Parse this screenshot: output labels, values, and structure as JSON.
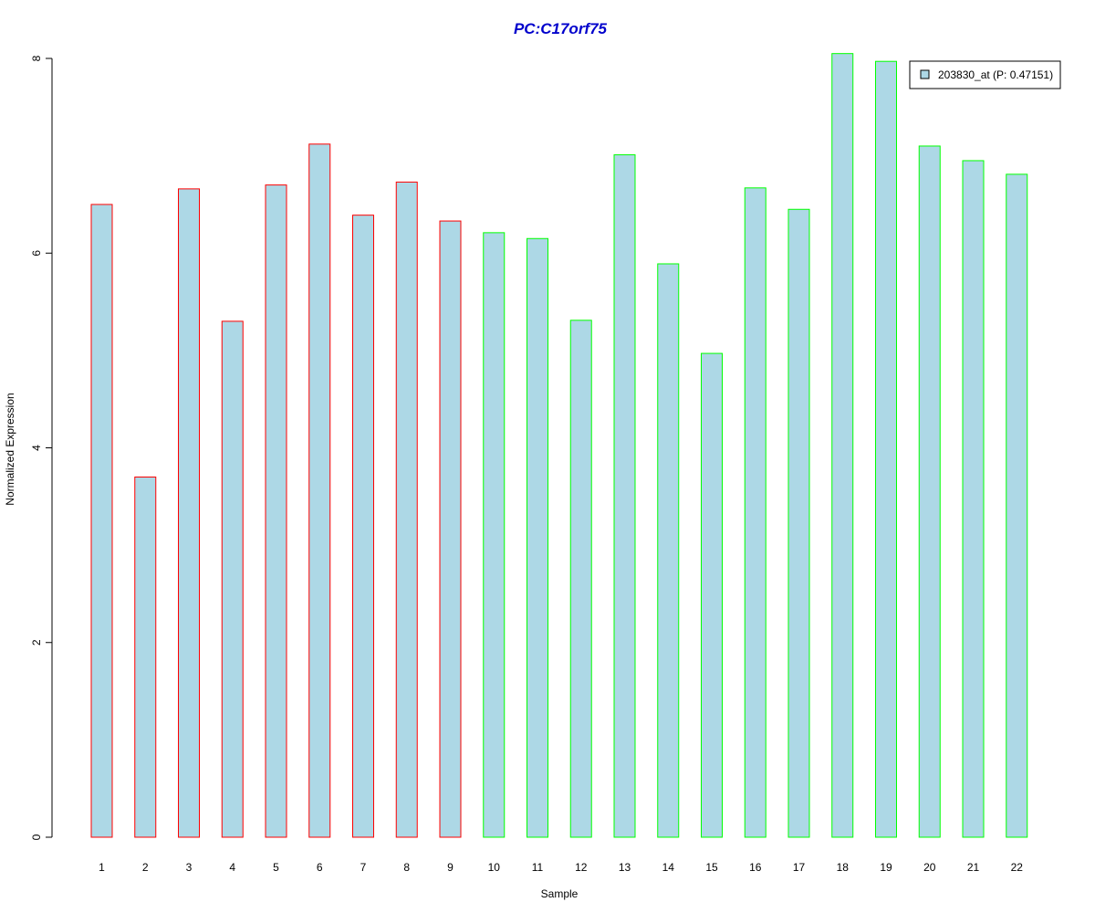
{
  "chart_data": {
    "type": "bar",
    "title": "PC:C17orf75",
    "xlabel": "Sample",
    "ylabel": "Normalized Expression",
    "ylim": [
      0,
      8
    ],
    "yticks": [
      0,
      2,
      4,
      6,
      8
    ],
    "categories": [
      "1",
      "2",
      "3",
      "4",
      "5",
      "6",
      "7",
      "8",
      "9",
      "10",
      "11",
      "12",
      "13",
      "14",
      "15",
      "16",
      "17",
      "18",
      "19",
      "20",
      "21",
      "22"
    ],
    "series": [
      {
        "name": "203830_at (P: 0.47151)",
        "values": [
          6.5,
          3.7,
          6.66,
          5.3,
          6.7,
          7.12,
          6.39,
          6.73,
          6.33,
          6.21,
          6.15,
          5.31,
          7.01,
          5.89,
          4.97,
          6.67,
          6.45,
          8.05,
          7.97,
          7.1,
          6.95,
          6.81
        ]
      }
    ],
    "bar_fill": "#add8e6",
    "group_colors": [
      "#ff0000",
      "#ff0000",
      "#ff0000",
      "#ff0000",
      "#ff0000",
      "#ff0000",
      "#ff0000",
      "#ff0000",
      "#ff0000",
      "#00ff00",
      "#00ff00",
      "#00ff00",
      "#00ff00",
      "#00ff00",
      "#00ff00",
      "#00ff00",
      "#00ff00",
      "#00ff00",
      "#00ff00",
      "#00ff00",
      "#00ff00",
      "#00ff00"
    ],
    "title_color": "#0000cc",
    "legend_position": "top-right",
    "grid": false
  }
}
